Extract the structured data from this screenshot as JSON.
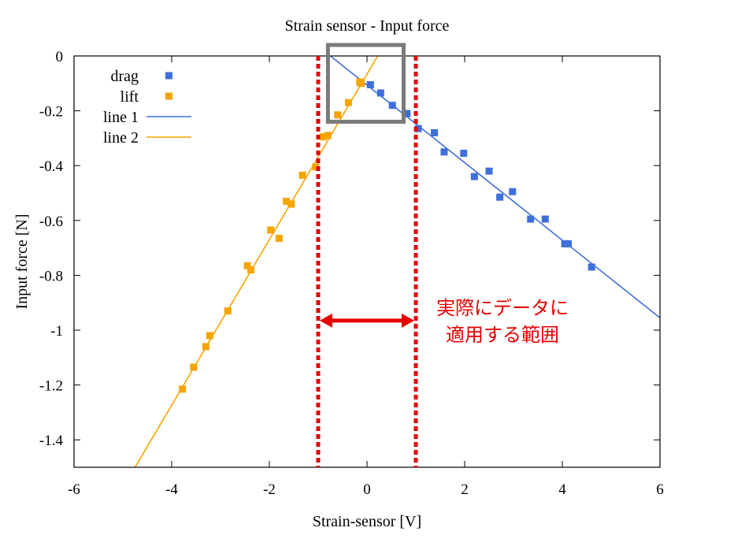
{
  "chart_data": {
    "type": "scatter",
    "title": "Strain sensor - Input force",
    "xlabel": "Strain-sensor [V]",
    "ylabel": "Input force [N]",
    "xlim": [
      -6,
      6
    ],
    "ylim": [
      -1.5,
      0
    ],
    "xticks": [
      "-6",
      "-4",
      "-2",
      "0",
      "2",
      "4",
      "6"
    ],
    "yticks": [
      "0",
      "-0.2",
      "-0.4",
      "-0.6",
      "-0.8",
      "-1",
      "-1.2",
      "-1.4"
    ],
    "grid": false,
    "legend_position": "top-left",
    "series": [
      {
        "name": "drag",
        "kind": "points",
        "color": "#3f6fdc",
        "points": [
          [
            0.07,
            -0.105
          ],
          [
            0.28,
            -0.135
          ],
          [
            0.52,
            -0.18
          ],
          [
            0.82,
            -0.21
          ],
          [
            1.05,
            -0.265
          ],
          [
            1.38,
            -0.28
          ],
          [
            1.58,
            -0.35
          ],
          [
            1.98,
            -0.355
          ],
          [
            2.2,
            -0.44
          ],
          [
            2.5,
            -0.42
          ],
          [
            2.72,
            -0.515
          ],
          [
            2.98,
            -0.495
          ],
          [
            3.35,
            -0.595
          ],
          [
            3.65,
            -0.595
          ],
          [
            4.05,
            -0.685
          ],
          [
            4.12,
            -0.685
          ],
          [
            4.6,
            -0.77
          ]
        ]
      },
      {
        "name": "lift",
        "kind": "points",
        "color": "#f5a500",
        "points": [
          [
            -0.15,
            -0.095
          ],
          [
            -0.12,
            -0.1
          ],
          [
            -0.38,
            -0.17
          ],
          [
            -0.6,
            -0.215
          ],
          [
            -0.8,
            -0.29
          ],
          [
            -0.9,
            -0.295
          ],
          [
            -1.05,
            -0.405
          ],
          [
            -1.32,
            -0.435
          ],
          [
            -1.55,
            -0.54
          ],
          [
            -1.65,
            -0.53
          ],
          [
            -1.8,
            -0.665
          ],
          [
            -1.97,
            -0.635
          ],
          [
            -2.38,
            -0.78
          ],
          [
            -2.45,
            -0.765
          ],
          [
            -2.85,
            -0.93
          ],
          [
            -3.22,
            -1.02
          ],
          [
            -3.3,
            -1.06
          ],
          [
            -3.55,
            -1.135
          ],
          [
            -3.78,
            -1.215
          ]
        ]
      },
      {
        "name": "line 1",
        "kind": "line",
        "color": "#3f6fdc",
        "points": [
          [
            -0.75,
            0.0
          ],
          [
            6.0,
            -0.955
          ]
        ]
      },
      {
        "name": "line 2",
        "kind": "line",
        "color": "#f5a500",
        "points": [
          [
            0.22,
            0.0
          ],
          [
            -4.75,
            -1.5
          ]
        ]
      }
    ],
    "annotations": {
      "range_lines_x": [
        -1,
        1
      ],
      "range_arrow_y": -0.965,
      "box": {
        "x": [
          -0.8,
          0.75
        ],
        "y": [
          -0.24,
          0.04
        ]
      },
      "text_lines": [
        "実際にデータに",
        "適用する範囲"
      ],
      "color": "#e60000",
      "box_color": "#7a7a7a"
    }
  }
}
